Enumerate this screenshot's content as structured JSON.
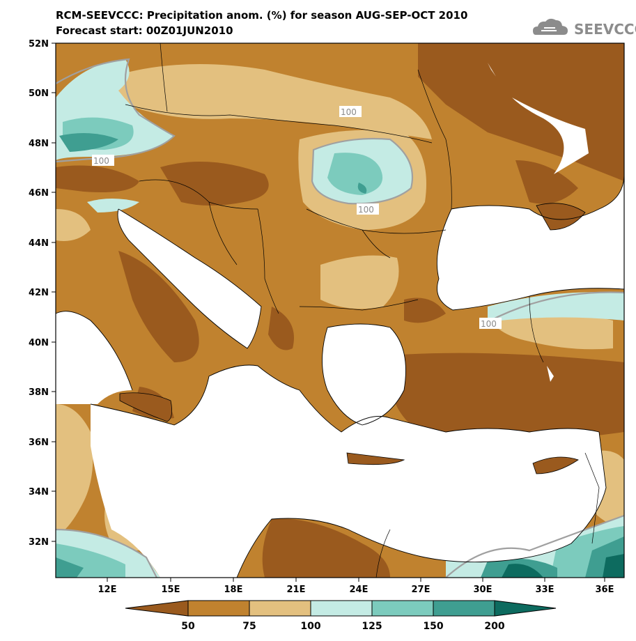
{
  "header": {
    "title_line1": "RCM-SEEVCCC: Precipitation anom. (%) for season AUG-SEP-OCT 2010",
    "title_line2": "Forecast start: 00Z01JUN2010",
    "logo_text": "SEEVCCC"
  },
  "map": {
    "region": "Balkans / Eastern Mediterranean",
    "lat_labels": [
      "52N",
      "50N",
      "48N",
      "46N",
      "44N",
      "42N",
      "40N",
      "38N",
      "36N",
      "34N",
      "32N"
    ],
    "lon_labels": [
      "12E",
      "15E",
      "18E",
      "21E",
      "24E",
      "27E",
      "30E",
      "33E",
      "36E"
    ],
    "contour_labels": [
      "100",
      "100",
      "100",
      "100"
    ]
  },
  "colorbar": {
    "levels": [
      "50",
      "75",
      "100",
      "125",
      "150",
      "200"
    ],
    "colors": [
      "#9a5a1e",
      "#c0822f",
      "#e3c07f",
      "#c4ebe4",
      "#7ccbbd",
      "#3f9e91",
      "#0d6b5f"
    ]
  },
  "colors": {
    "land_dry": "#c0822f",
    "land_very_dry": "#9a5a1e",
    "land_mild": "#e3c07f",
    "wet_light": "#c4ebe4",
    "wet_mid": "#7ccbbd",
    "wet_high": "#3f9e91",
    "wet_max": "#0d6b5f",
    "sea": "#ffffff"
  }
}
